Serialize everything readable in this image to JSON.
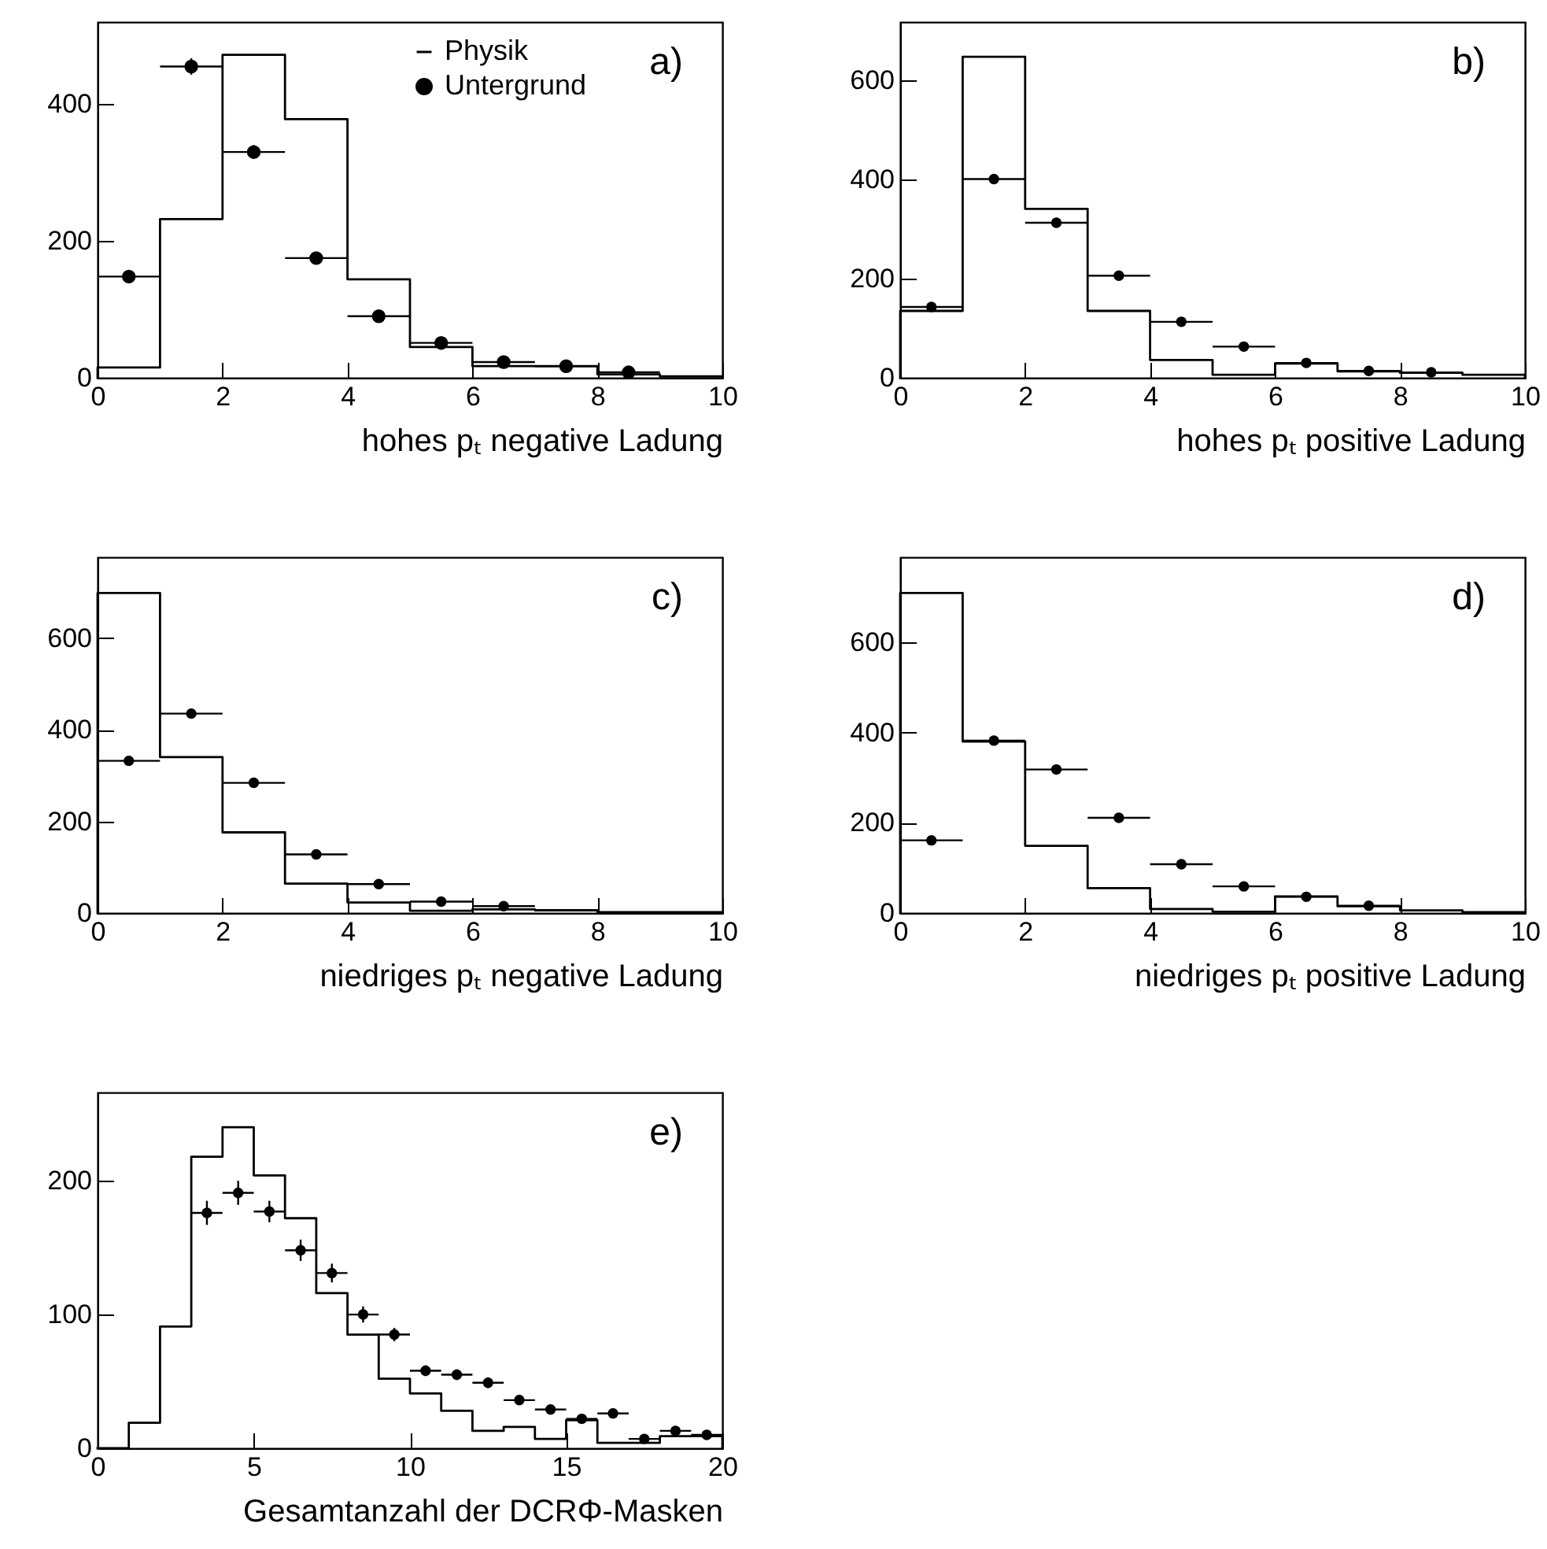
{
  "chart_data": [
    {
      "type": "histogram",
      "xlabel": "hohes pₜ negative Ladung",
      "annotations": [
        "a)"
      ],
      "legend": "top",
      "marker": "circle",
      "bins": [
        0,
        1,
        2,
        3,
        4,
        5,
        6,
        7,
        8,
        9,
        10
      ],
      "xlim": [
        0,
        10
      ],
      "xticks": [
        0,
        2,
        4,
        6,
        8,
        10
      ],
      "ylim": [
        0,
        520
      ],
      "yticks": [
        0,
        200,
        400
      ],
      "series": [
        {
          "name": "Physik",
          "type": "histogram",
          "color": "#000000",
          "values": [
            15,
            232,
            472,
            378,
            144,
            45,
            17,
            17,
            5,
            2
          ]
        },
        {
          "name": "Untergrund",
          "type": "scatter",
          "color": "#000000",
          "x": [
            0.5,
            1.5,
            2.5,
            3.5,
            4.5,
            5.5,
            6.5,
            7.5,
            8.5
          ],
          "values": [
            148,
            455,
            330,
            175,
            90,
            51,
            23,
            17,
            8
          ],
          "xerrors": [
            0.5,
            0.5,
            0.5,
            0.5,
            0.5,
            0.5,
            0.5,
            0.5,
            0.5
          ],
          "errors": [
            null,
            12,
            10,
            null,
            null,
            null,
            null,
            null,
            null
          ]
        }
      ]
    },
    {
      "type": "histogram",
      "xlabel": "hohes pₜ positive Ladung",
      "annotations": [
        "b)"
      ],
      "marker": "circle",
      "bins": [
        0,
        1,
        2,
        3,
        4,
        5,
        6,
        7,
        8,
        9,
        10
      ],
      "xlim": [
        0,
        10
      ],
      "xticks": [
        0,
        2,
        4,
        6,
        8,
        10
      ],
      "ylim": [
        0,
        718
      ],
      "yticks": [
        0,
        200,
        400,
        600
      ],
      "series": [
        {
          "type": "histogram",
          "color": "#000000",
          "values": [
            135,
            648,
            341,
            135,
            36,
            6,
            29,
            13,
            10,
            6
          ]
        },
        {
          "type": "scatter",
          "color": "#000000",
          "x": [
            0.5,
            1.5,
            2.5,
            3.5,
            4.5,
            5.5,
            6.5,
            7.5,
            8.5
          ],
          "values": [
            143,
            401,
            313,
            206,
            113,
            63,
            30,
            14,
            11
          ],
          "xerrors": [
            0.5,
            0.5,
            0.5,
            0.5,
            0.5,
            0.5,
            0.5,
            0.5,
            0.5
          ]
        }
      ]
    },
    {
      "type": "histogram",
      "xlabel": "niedriges pₜ negative Ladung",
      "annotations": [
        "c)"
      ],
      "marker": "circle",
      "bins": [
        0,
        1,
        2,
        3,
        4,
        5,
        6,
        7,
        8,
        9,
        10
      ],
      "xlim": [
        0,
        10
      ],
      "xticks": [
        0,
        2,
        4,
        6,
        8,
        10
      ],
      "ylim": [
        0,
        776
      ],
      "yticks": [
        0,
        200,
        400,
        600
      ],
      "series": [
        {
          "type": "histogram",
          "color": "#000000",
          "values": [
            698,
            340,
            176,
            64,
            23,
            5,
            8,
            6,
            2,
            2
          ]
        },
        {
          "type": "scatter",
          "color": "#000000",
          "x": [
            0.5,
            1.5,
            2.5,
            3.5,
            4.5,
            5.5,
            6.5
          ],
          "values": [
            332,
            435,
            284,
            128,
            63,
            25,
            15
          ],
          "xerrors": [
            0.5,
            0.5,
            0.5,
            0.5,
            0.5,
            0.5,
            0.5
          ]
        }
      ]
    },
    {
      "type": "histogram",
      "xlabel": "niedriges pₜ positive Ladung",
      "annotations": [
        "d)"
      ],
      "marker": "circle",
      "bins": [
        0,
        1,
        2,
        3,
        4,
        5,
        6,
        7,
        8,
        9,
        10
      ],
      "xlim": [
        0,
        10
      ],
      "xticks": [
        0,
        2,
        4,
        6,
        8,
        10
      ],
      "ylim": [
        0,
        788
      ],
      "yticks": [
        0,
        200,
        400,
        600
      ],
      "series": [
        {
          "type": "histogram",
          "color": "#000000",
          "values": [
            709,
            380,
            149,
            55,
            9,
            3,
            37,
            15,
            6,
            2
          ]
        },
        {
          "type": "scatter",
          "color": "#000000",
          "x": [
            0.5,
            1.5,
            2.5,
            3.5,
            4.5,
            5.5,
            6.5,
            7.5
          ],
          "values": [
            161,
            382,
            318,
            211,
            108,
            59,
            36,
            16
          ],
          "xerrors": [
            0.5,
            0.5,
            0.5,
            0.5,
            0.5,
            0.5,
            0.5,
            0.5
          ]
        }
      ]
    },
    {
      "type": "histogram",
      "xlabel": "Gesamtanzahl der DCRΦ-Masken",
      "annotations": [
        "e)"
      ],
      "marker": "circle",
      "bins": [
        0,
        1,
        2,
        3,
        4,
        5,
        6,
        7,
        8,
        9,
        10,
        11,
        12,
        13,
        14,
        15,
        16,
        17,
        18,
        19,
        20
      ],
      "xlim": [
        0,
        20
      ],
      "xticks": [
        0,
        5,
        10,
        15,
        20
      ],
      "ylim": [
        0,
        266
      ],
      "yticks": [
        0,
        100,
        200
      ],
      "series": [
        {
          "type": "histogram",
          "color": "#000000",
          "values": [
            0,
            19,
            91,
            218,
            240,
            204,
            172,
            116,
            85,
            52,
            41,
            28,
            13,
            16,
            7,
            21,
            4,
            4,
            9,
            9
          ]
        },
        {
          "type": "scatter",
          "color": "#000000",
          "x": [
            3.5,
            4.5,
            5.5,
            6.5,
            7.5,
            8.5,
            9.5,
            10.5,
            11.5,
            12.5,
            13.5,
            14.5,
            15.5,
            16.5,
            17.5,
            18.5,
            19.5
          ],
          "values": [
            176,
            191,
            177,
            148,
            131,
            100,
            85,
            58,
            55,
            49,
            36,
            29,
            22,
            26,
            7,
            13,
            10
          ],
          "xerrors": [
            0.5,
            0.5,
            0.5,
            0.5,
            0.5,
            0.5,
            0.5,
            0.5,
            0.5,
            0.5,
            0.5,
            0.5,
            0.5,
            0.5,
            0.5,
            0.5,
            0.5
          ],
          "errors": [
            9,
            9,
            8,
            8,
            7,
            6,
            5,
            4,
            4,
            4,
            null,
            null,
            null,
            null,
            null,
            null,
            null
          ]
        }
      ]
    }
  ]
}
